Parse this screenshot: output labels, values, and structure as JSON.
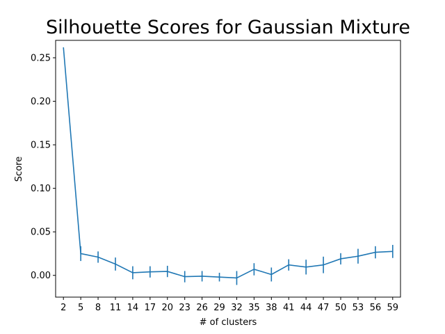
{
  "chart_data": {
    "type": "line",
    "title": "Silhouette Scores for Gaussian Mixture",
    "xlabel": "# of clusters",
    "ylabel": "Score",
    "ylim": [
      -0.025,
      0.27
    ],
    "grid": false,
    "legend": "none",
    "x_ticks": [
      "2",
      "5",
      "8",
      "11",
      "14",
      "17",
      "20",
      "23",
      "26",
      "29",
      "32",
      "35",
      "38",
      "41",
      "44",
      "47",
      "50",
      "53",
      "56",
      "59"
    ],
    "y_ticks": [
      "0.00",
      "0.05",
      "0.10",
      "0.15",
      "0.20",
      "0.25"
    ],
    "series": [
      {
        "x": [
          2,
          5,
          8,
          11,
          14,
          17,
          20,
          23,
          26,
          29,
          32,
          35,
          38,
          41,
          44,
          47,
          50,
          53,
          56,
          59
        ],
        "values": [
          0.262,
          0.025,
          0.021,
          0.013,
          0.003,
          0.004,
          0.0045,
          -0.0015,
          -0.001,
          -0.002,
          -0.003,
          0.007,
          0.001,
          0.012,
          0.0095,
          0.012,
          0.019,
          0.022,
          0.0265,
          0.0275
        ],
        "error": [
          0.0,
          0.0085,
          0.0065,
          0.0075,
          0.0075,
          0.0065,
          0.0065,
          0.0065,
          0.006,
          0.005,
          0.008,
          0.007,
          0.008,
          0.0065,
          0.0085,
          0.0095,
          0.0065,
          0.0085,
          0.007,
          0.0075
        ],
        "color": "#1f77b4"
      }
    ]
  }
}
